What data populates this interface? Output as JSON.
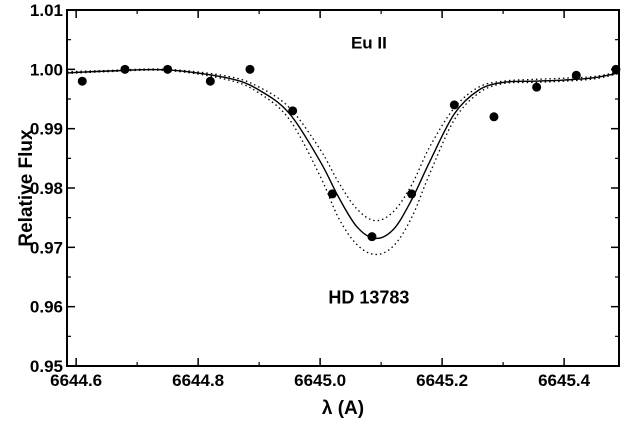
{
  "chart_data": {
    "type": "line",
    "xlabel": "λ (A)",
    "ylabel": "Relative Flux",
    "xlim": [
      6644.585,
      6645.49
    ],
    "ylim": [
      0.95,
      1.01
    ],
    "x_ticks": [
      6644.6,
      6644.8,
      6645.0,
      6645.2,
      6645.4
    ],
    "x_tick_labels": [
      "6644.6",
      "6644.8",
      "6645.0",
      "6645.2",
      "6645.4"
    ],
    "y_ticks": [
      0.95,
      0.96,
      0.97,
      0.98,
      0.99,
      1.0,
      1.01
    ],
    "y_tick_labels": [
      "0.95",
      "0.96",
      "0.97",
      "0.98",
      "0.99",
      "1.00",
      "1.01"
    ],
    "grid": false,
    "annotations": [
      {
        "text": "Eu II",
        "x": 6645.08,
        "y": 1.0035
      },
      {
        "text": "HD 13783",
        "x": 6645.08,
        "y": 0.9605
      }
    ],
    "series": [
      {
        "style": "scatter",
        "x": [
          6644.61,
          6644.68,
          6644.75,
          6644.82,
          6644.885,
          6644.955,
          6645.02,
          6645.085,
          6645.15,
          6645.22,
          6645.285,
          6645.355,
          6645.42,
          6645.485
        ],
        "y": [
          0.998,
          1.0,
          1.0,
          0.998,
          1.0,
          0.993,
          0.979,
          0.9718,
          0.979,
          0.994,
          0.992,
          0.997,
          0.999,
          1.0
        ]
      },
      {
        "style": "solid",
        "x": [
          6644.585,
          6644.65,
          6644.75,
          6644.85,
          6644.9,
          6644.95,
          6645.0,
          6645.03,
          6645.06,
          6645.09,
          6645.12,
          6645.15,
          6645.18,
          6645.22,
          6645.26,
          6645.3,
          6645.35,
          6645.4,
          6645.45,
          6645.49
        ],
        "y": [
          0.9994,
          0.9997,
          0.9999,
          0.9985,
          0.9965,
          0.9925,
          0.9845,
          0.9785,
          0.9735,
          0.9715,
          0.973,
          0.978,
          0.9845,
          0.9925,
          0.9965,
          0.9978,
          0.998,
          0.9982,
          0.9986,
          0.9994
        ]
      },
      {
        "style": "dotted",
        "x": [
          6644.585,
          6644.65,
          6644.75,
          6644.85,
          6644.9,
          6644.95,
          6645.0,
          6645.03,
          6645.06,
          6645.09,
          6645.12,
          6645.15,
          6645.18,
          6645.22,
          6645.26,
          6645.3,
          6645.35,
          6645.4,
          6645.45,
          6645.49
        ],
        "y": [
          0.9996,
          0.9998,
          1.0,
          0.9988,
          0.997,
          0.9935,
          0.9865,
          0.981,
          0.9765,
          0.9745,
          0.976,
          0.9805,
          0.987,
          0.9935,
          0.997,
          0.998,
          0.9983,
          0.9985,
          0.9988,
          0.9996
        ]
      },
      {
        "style": "dotted",
        "x": [
          6644.585,
          6644.65,
          6644.75,
          6644.85,
          6644.9,
          6644.95,
          6645.0,
          6645.03,
          6645.06,
          6645.09,
          6645.12,
          6645.15,
          6645.18,
          6645.22,
          6645.26,
          6645.3,
          6645.35,
          6645.4,
          6645.45,
          6645.49
        ],
        "y": [
          0.9993,
          0.9996,
          0.9998,
          0.9982,
          0.996,
          0.9915,
          0.982,
          0.975,
          0.9705,
          0.9688,
          0.9702,
          0.975,
          0.9825,
          0.9915,
          0.996,
          0.9976,
          0.9978,
          0.998,
          0.9984,
          0.9993
        ]
      }
    ]
  }
}
